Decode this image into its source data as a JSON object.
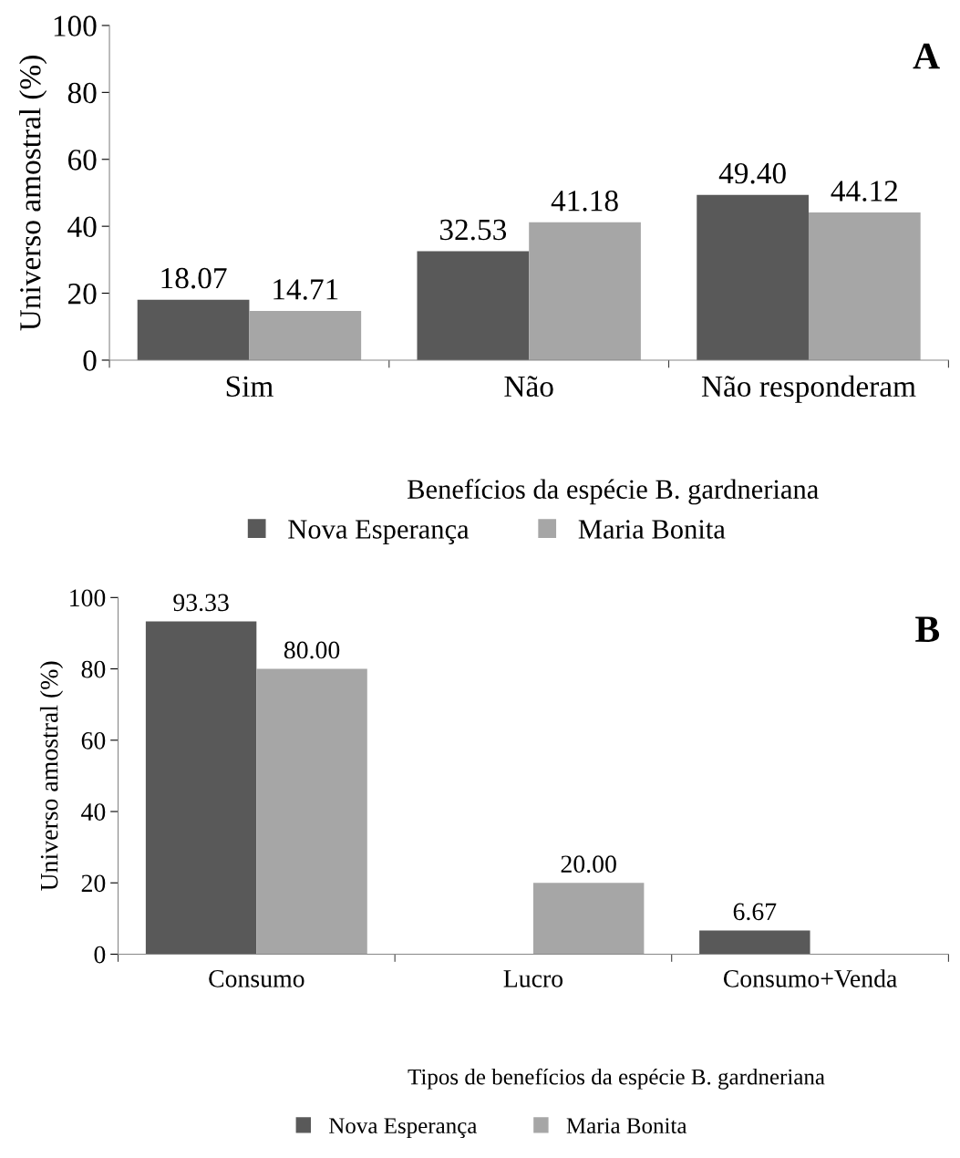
{
  "chart_data": [
    {
      "type": "bar",
      "categories": [
        "Sim",
        "Não",
        "Não responderam"
      ],
      "xlabel": "Benefícios da espécie B. gardneriana",
      "ylabel": "Universo amostral (%)",
      "series": [
        {
          "name": "Nova Esperança",
          "color": "#595959",
          "values": [
            18.07,
            32.53,
            49.4
          ]
        },
        {
          "name": "Maria Bonita",
          "color": "#a6a6a6",
          "values": [
            14.71,
            41.18,
            44.12
          ]
        }
      ],
      "value_labels": [
        [
          "18.07",
          "32.53",
          "49.40"
        ],
        [
          "14.71",
          "41.18",
          "44.12"
        ]
      ],
      "ylim": [
        0,
        100
      ],
      "yticks": [
        0,
        20,
        40,
        60,
        80,
        100
      ],
      "grid": false,
      "legend": "bottom",
      "annotations": [
        "A"
      ]
    },
    {
      "type": "bar",
      "categories": [
        "Consumo",
        "Lucro",
        "Consumo+Venda"
      ],
      "xlabel": "Tipos de benefícios da espécie B. gardneriana",
      "ylabel": "Universo amostral (%)",
      "series": [
        {
          "name": "Nova Esperança",
          "color": "#595959",
          "values": [
            93.33,
            null,
            6.67
          ]
        },
        {
          "name": "Maria Bonita",
          "color": "#a6a6a6",
          "values": [
            80.0,
            20.0,
            null
          ]
        }
      ],
      "value_labels": [
        [
          "93.33",
          null,
          "6.67"
        ],
        [
          "80.00",
          "20.00",
          null
        ]
      ],
      "ylim": [
        0,
        100
      ],
      "yticks": [
        0,
        20,
        40,
        60,
        80,
        100
      ],
      "grid": false,
      "legend": "bottom",
      "annotations": [
        "B"
      ]
    }
  ]
}
